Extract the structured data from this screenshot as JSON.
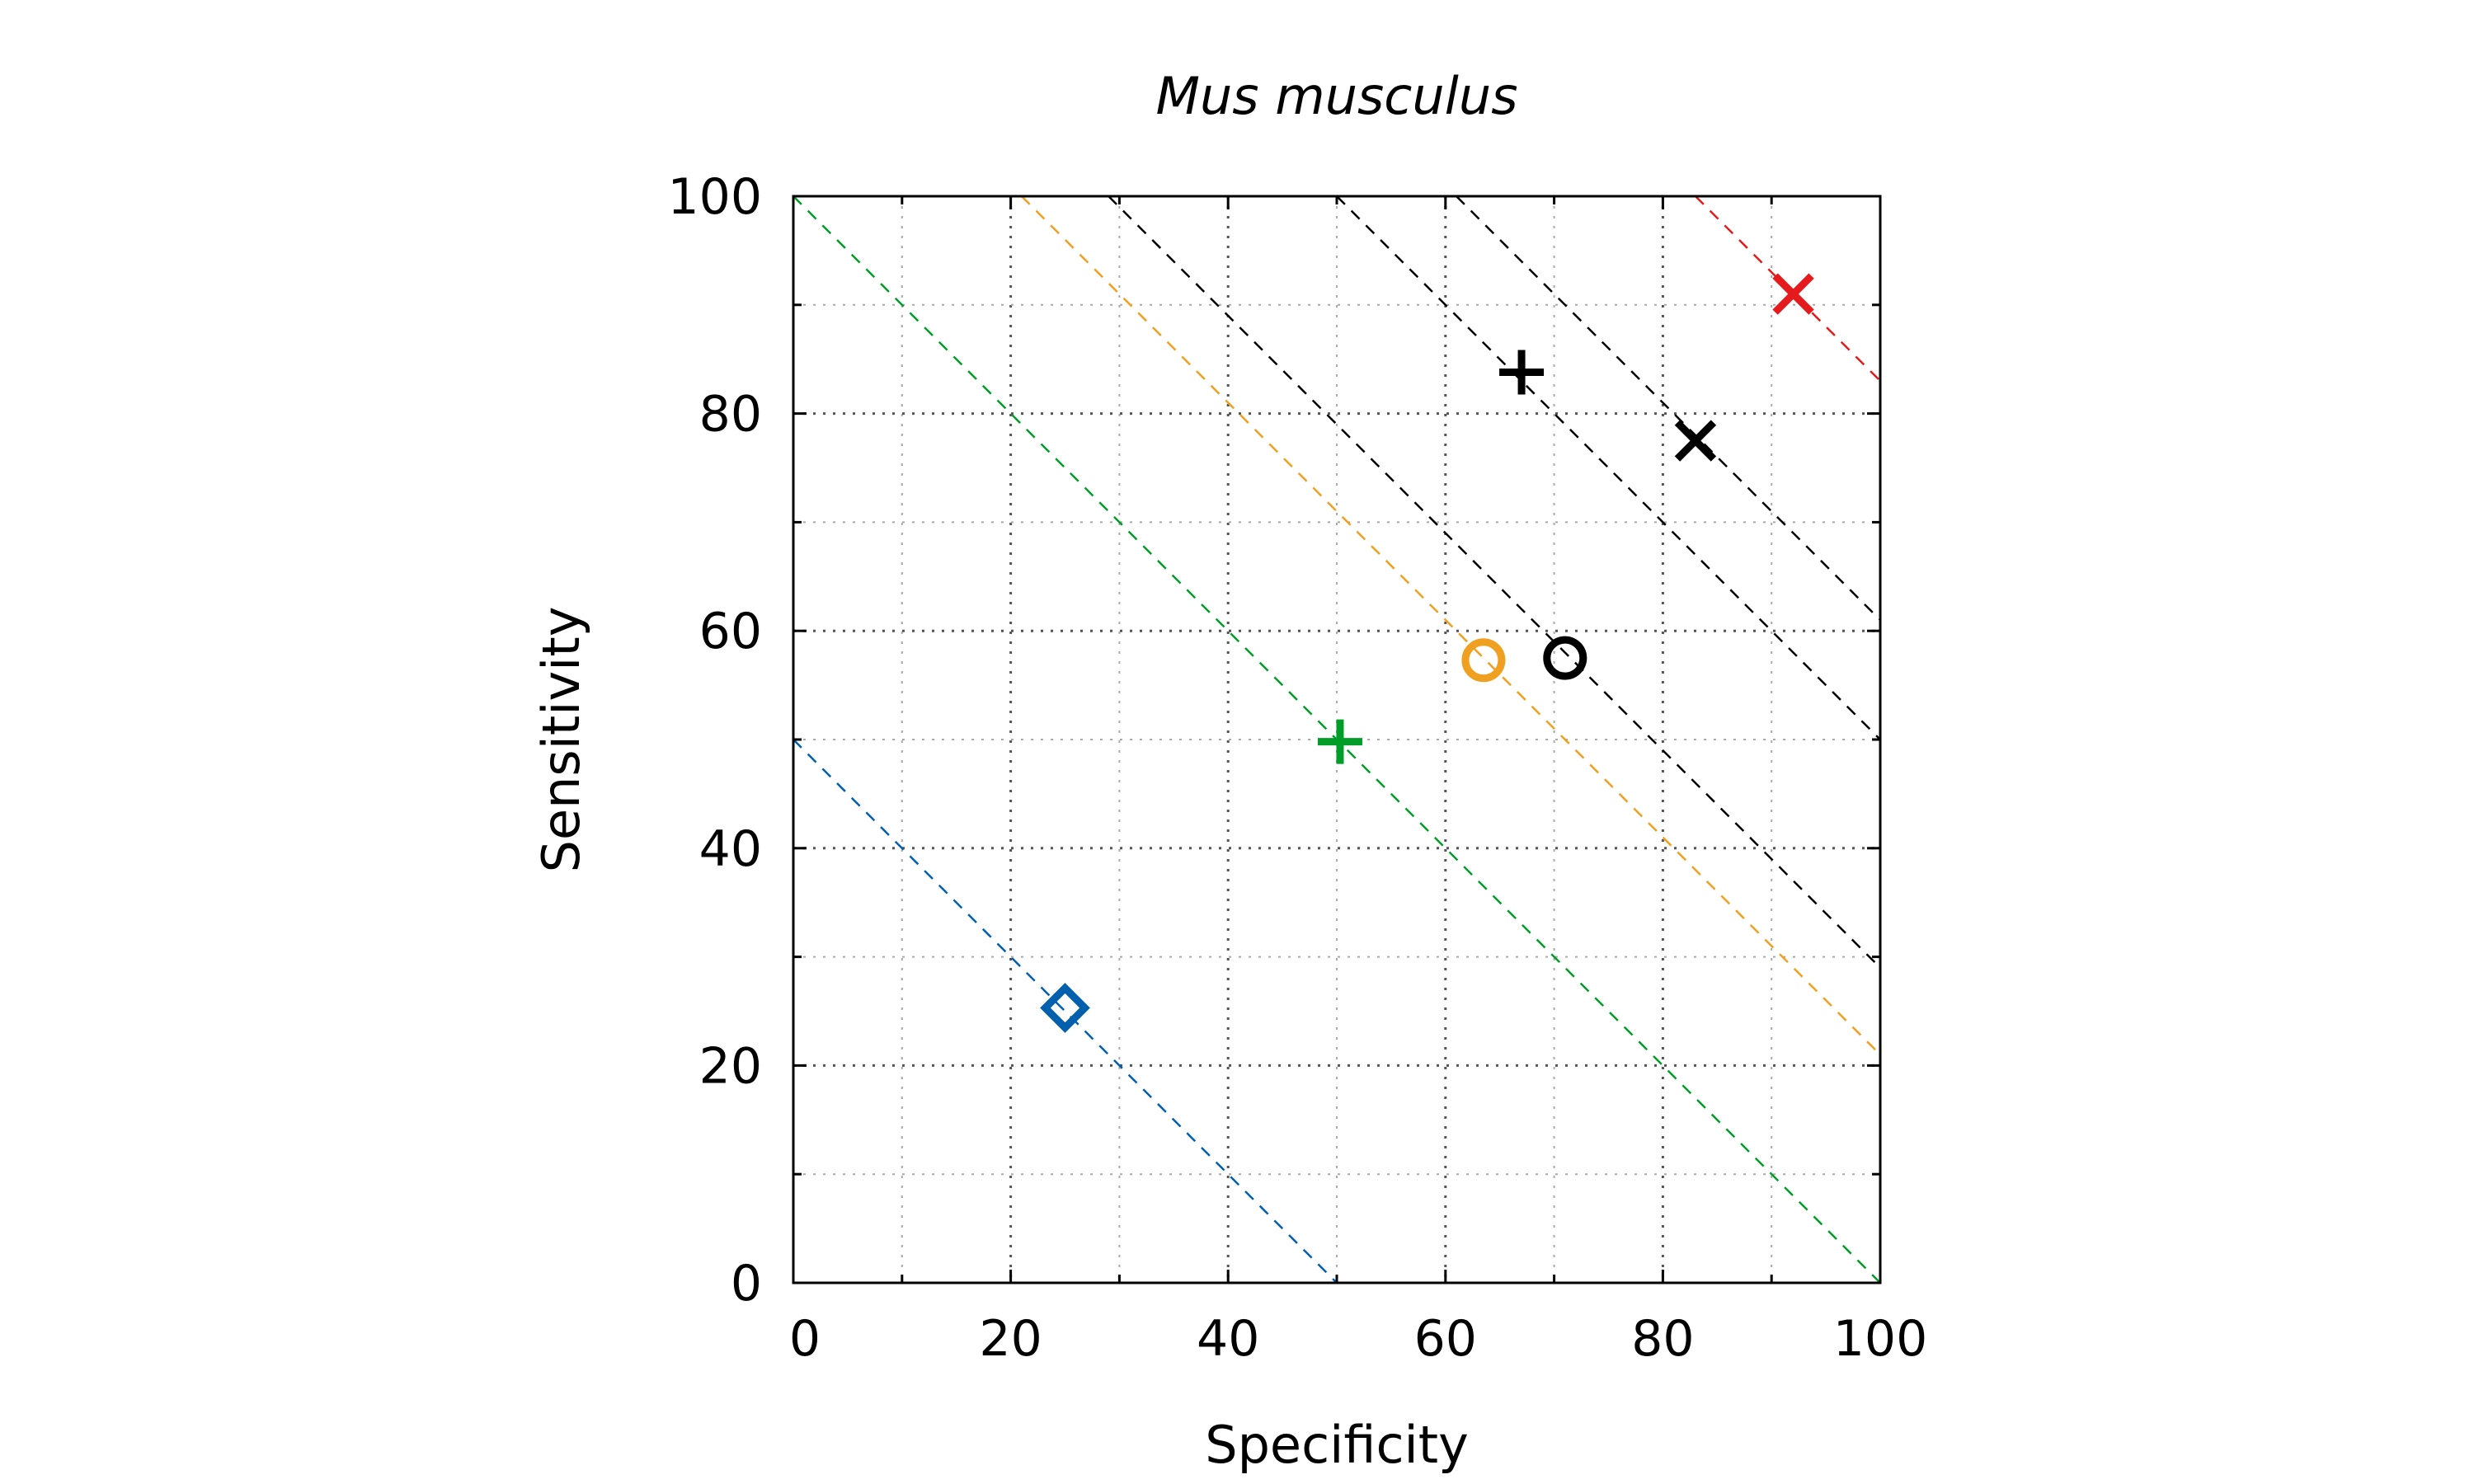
{
  "chart_data": {
    "type": "scatter",
    "title": "Mus musculus",
    "xlabel": "Specificity",
    "ylabel": "Sensitivity",
    "xlim": [
      0,
      100
    ],
    "ylim": [
      0,
      100
    ],
    "xticks": [
      "0",
      "20",
      "40",
      "60",
      "80",
      "100"
    ],
    "yticks": [
      "0",
      "20",
      "40",
      "60",
      "80",
      "100"
    ],
    "grid": true,
    "points": [
      {
        "x": 25,
        "y": 25.3,
        "marker": "diamond",
        "color": "#0060ad"
      },
      {
        "x": 50.3,
        "y": 49.8,
        "marker": "plus",
        "color": "#009e28"
      },
      {
        "x": 63.5,
        "y": 57.3,
        "marker": "circle",
        "color": "#f0a020"
      },
      {
        "x": 71,
        "y": 57.5,
        "marker": "circle",
        "color": "#000000"
      },
      {
        "x": 67,
        "y": 83.8,
        "marker": "plus",
        "color": "#000000"
      },
      {
        "x": 83,
        "y": 77.5,
        "marker": "cross",
        "color": "#000000"
      },
      {
        "x": 92,
        "y": 91,
        "marker": "cross",
        "color": "#e41a1c"
      }
    ],
    "reference_lines": [
      {
        "sum": 50,
        "color": "#0060ad"
      },
      {
        "sum": 100,
        "color": "#009e28"
      },
      {
        "sum": 121,
        "color": "#f0a020"
      },
      {
        "sum": 129,
        "color": "#000000"
      },
      {
        "sum": 150,
        "color": "#000000"
      },
      {
        "sum": 161,
        "color": "#000000"
      },
      {
        "sum": 183,
        "color": "#e41a1c"
      }
    ]
  }
}
